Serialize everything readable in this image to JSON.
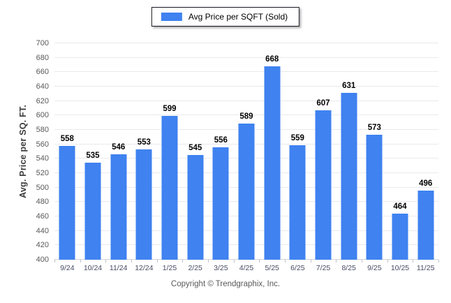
{
  "chart_data": {
    "type": "bar",
    "title": "",
    "xlabel": "",
    "ylabel": "Avg. Price per SQ. FT.",
    "categories": [
      "9/24",
      "10/24",
      "11/24",
      "12/24",
      "1/25",
      "2/25",
      "3/25",
      "4/25",
      "5/25",
      "6/25",
      "7/25",
      "8/25",
      "9/25",
      "10/25",
      "11/25"
    ],
    "values": [
      558,
      535,
      546,
      553,
      599,
      545,
      556,
      589,
      668,
      559,
      607,
      631,
      573,
      464,
      496
    ],
    "ylim": [
      400,
      700
    ],
    "ytick_step": 20,
    "grid": true,
    "legend_position": "top-center",
    "legend_entries": [
      "Avg Price per SQFT (Sold)"
    ],
    "bar_color": "#3f82f0",
    "value_labels_shown": true
  },
  "legend": {
    "label": "Avg Price per SQFT (Sold)",
    "swatch_color": "#3f82f0"
  },
  "footer": {
    "copyright": "Copyright © Trendgraphix, Inc."
  },
  "colors": {
    "bar": "#3f82f0",
    "gridline": "#eaeaee",
    "axis_line": "#d4d4da",
    "y_tick_label": "#595959",
    "x_tick_label": "#464a63",
    "value_label": "#000000",
    "y_title": "#3d3d3d",
    "background": "#ffffff"
  }
}
